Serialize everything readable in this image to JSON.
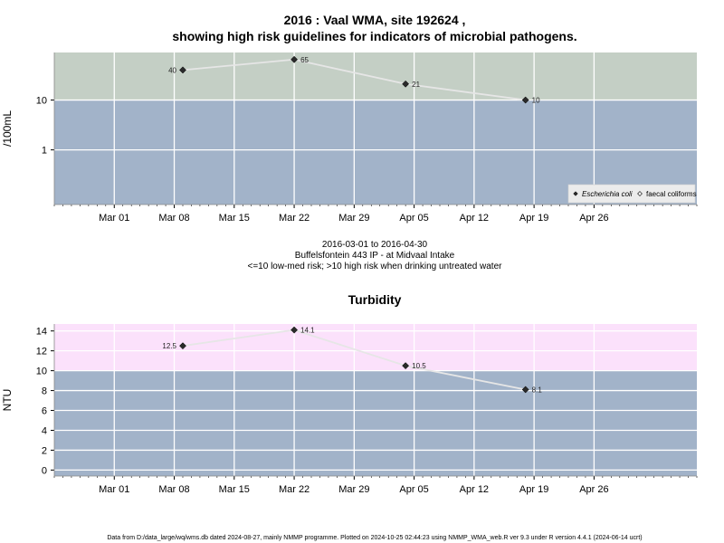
{
  "colors": {
    "band_low": "#a2b3c9",
    "band_high_1": "#c4cfc5",
    "band_high_2": "#fbe1fb",
    "grid": "#ffffff",
    "line": "#e6e6e6",
    "point": "#2a2a2a"
  },
  "footer": "Data from D:/data_large/wq/wms.db dated 2024-08-27, mainly NMMP programme. Plotted on 2024-10-25 02:44:23 using NMMP_WMA_web.R ver 9.3 under R version 4.4.1 (2024-06-14 ucrt)",
  "chart_data": [
    {
      "type": "line",
      "title": [
        "2016 : Vaal WMA, site 192624 ,",
        "showing high risk guidelines for indicators of microbial pathogens."
      ],
      "ylabel": "/100mL",
      "xlabel": "",
      "x_range": [
        "2016-02-23",
        "2016-05-08"
      ],
      "x_ticks": [
        "2016-03-01",
        "2016-03-08",
        "2016-03-15",
        "2016-03-22",
        "2016-03-29",
        "2016-04-05",
        "2016-04-12",
        "2016-04-19",
        "2016-04-26"
      ],
      "x_tick_labels": [
        "Mar 01",
        "Mar 08",
        "Mar 15",
        "Mar 22",
        "Mar 29",
        "Apr 05",
        "Apr 12",
        "Apr 19",
        "Apr 26"
      ],
      "y_scale": "log",
      "ylim": [
        0.08,
        90
      ],
      "y_ticks": [
        1,
        10
      ],
      "y_tick_labels": [
        "1",
        "10"
      ],
      "threshold": 10,
      "band_low_color": "#a2b3c9",
      "band_high_color": "#c4cfc5",
      "grid": true,
      "series": [
        {
          "name": "Escherichia coli",
          "marker": "diamond-filled",
          "x": [
            "2016-03-09",
            "2016-03-22",
            "2016-04-04",
            "2016-04-18"
          ],
          "y": [
            40,
            65,
            21,
            10
          ],
          "labels": [
            "40",
            "65",
            "21",
            "10"
          ],
          "label_side": [
            "left",
            "right",
            "right",
            "right"
          ]
        }
      ],
      "legend": {
        "position": "bottom-right",
        "entries": [
          {
            "name": "Escherichia coli",
            "marker": "diamond-filled",
            "italic": true
          },
          {
            "name": "faecal coliforms",
            "marker": "diamond-open",
            "italic": false
          }
        ]
      },
      "captions": [
        "2016-03-01 to 2016-04-30",
        "Buffelsfontein 443 IP - at Midvaal Intake",
        "<=10 low-med risk; >10 high risk when drinking untreated water"
      ]
    },
    {
      "type": "line",
      "title": [
        "Turbidity"
      ],
      "ylabel": "NTU",
      "xlabel": "",
      "x_range": [
        "2016-02-23",
        "2016-05-08"
      ],
      "x_ticks": [
        "2016-03-01",
        "2016-03-08",
        "2016-03-15",
        "2016-03-22",
        "2016-03-29",
        "2016-04-05",
        "2016-04-12",
        "2016-04-19",
        "2016-04-26"
      ],
      "x_tick_labels": [
        "Mar 01",
        "Mar 08",
        "Mar 15",
        "Mar 22",
        "Mar 29",
        "Apr 05",
        "Apr 12",
        "Apr 19",
        "Apr 26"
      ],
      "y_scale": "linear",
      "ylim": [
        -0.6,
        14.7
      ],
      "y_ticks": [
        0,
        2,
        4,
        6,
        8,
        10,
        12,
        14
      ],
      "y_tick_labels": [
        "0",
        "2",
        "4",
        "6",
        "8",
        "10",
        "12",
        "14"
      ],
      "threshold": 10,
      "band_low_color": "#a2b3c9",
      "band_high_color": "#fbe1fb",
      "grid": true,
      "series": [
        {
          "name": "Turbidity",
          "marker": "diamond-filled",
          "x": [
            "2016-03-09",
            "2016-03-22",
            "2016-04-04",
            "2016-04-18"
          ],
          "y": [
            12.5,
            14.1,
            10.5,
            8.1
          ],
          "labels": [
            "12.5",
            "14.1",
            "10.5",
            "8.1"
          ],
          "label_side": [
            "left",
            "right",
            "right",
            "right"
          ]
        }
      ]
    }
  ]
}
